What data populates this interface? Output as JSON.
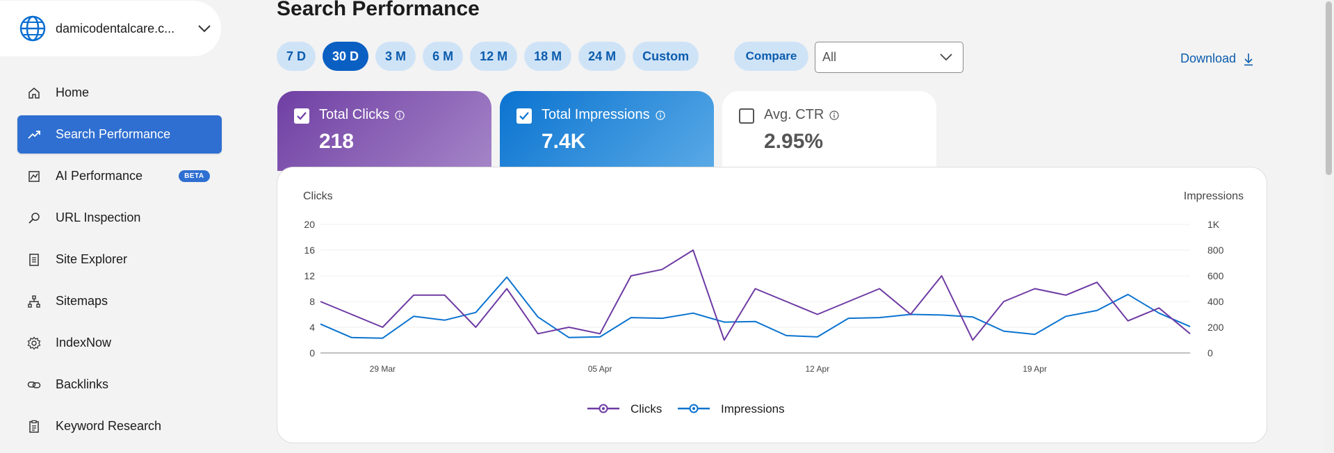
{
  "site": {
    "name": "damicodentalcare.c..."
  },
  "nav": {
    "items": [
      {
        "label": "Home",
        "icon": "home-icon",
        "active": false
      },
      {
        "label": "Search Performance",
        "icon": "trend-icon",
        "active": true
      },
      {
        "label": "AI Performance",
        "icon": "ai-chart-icon",
        "active": false,
        "badge": "BETA"
      },
      {
        "label": "URL Inspection",
        "icon": "search-icon",
        "active": false
      },
      {
        "label": "Site Explorer",
        "icon": "document-icon",
        "active": false
      },
      {
        "label": "Sitemaps",
        "icon": "sitemap-icon",
        "active": false
      },
      {
        "label": "IndexNow",
        "icon": "gear-icon",
        "active": false
      },
      {
        "label": "Backlinks",
        "icon": "link-icon",
        "active": false
      },
      {
        "label": "Keyword Research",
        "icon": "clipboard-icon",
        "active": false
      }
    ]
  },
  "page": {
    "title": "Search Performance"
  },
  "ranges": [
    {
      "label": "7 D",
      "active": false
    },
    {
      "label": "30 D",
      "active": true
    },
    {
      "label": "3 M",
      "active": false
    },
    {
      "label": "6 M",
      "active": false
    },
    {
      "label": "12 M",
      "active": false
    },
    {
      "label": "18 M",
      "active": false
    },
    {
      "label": "24 M",
      "active": false
    },
    {
      "label": "Custom",
      "active": false
    }
  ],
  "toolbar": {
    "compare_label": "Compare",
    "filter_value": "All",
    "download_label": "Download"
  },
  "cards": {
    "clicks": {
      "label": "Total Clicks",
      "value": "218",
      "checked": true
    },
    "impressions": {
      "label": "Total Impressions",
      "value": "7.4K",
      "checked": true
    },
    "ctr": {
      "label": "Avg. CTR",
      "value": "2.95%",
      "checked": false
    }
  },
  "colors": {
    "clicks": "#6e3aa3",
    "impressions": "#0a73d0",
    "accent": "#2f6fd1"
  },
  "chart_data": {
    "type": "line",
    "xlabel": "",
    "y_left_label": "Clicks",
    "y_right_label": "Impressions",
    "y_left_ticks": [
      "0",
      "4",
      "8",
      "12",
      "16",
      "20"
    ],
    "y_right_ticks": [
      "0",
      "200",
      "400",
      "600",
      "800",
      "1K"
    ],
    "y_left_range": [
      0,
      20
    ],
    "y_right_range": [
      0,
      1000
    ],
    "x_tick_labels": [
      "29 Mar",
      "05 Apr",
      "12 Apr",
      "19 Apr"
    ],
    "x_tick_index": [
      2,
      9,
      16,
      23
    ],
    "series": [
      {
        "name": "Clicks",
        "axis": "left",
        "values": [
          8,
          6,
          4,
          9,
          9,
          4,
          10,
          3,
          4,
          3,
          12,
          13,
          16,
          2,
          10,
          8,
          6,
          8,
          10,
          6,
          12,
          2,
          8,
          10,
          9,
          11,
          5,
          7,
          3
        ]
      },
      {
        "name": "Impressions",
        "axis": "right",
        "values": [
          225,
          120,
          115,
          285,
          255,
          315,
          590,
          280,
          120,
          125,
          275,
          270,
          310,
          240,
          245,
          135,
          125,
          270,
          275,
          300,
          295,
          280,
          170,
          145,
          285,
          330,
          455,
          310,
          205
        ]
      }
    ],
    "grid": true,
    "legend_position": "bottom-center"
  }
}
